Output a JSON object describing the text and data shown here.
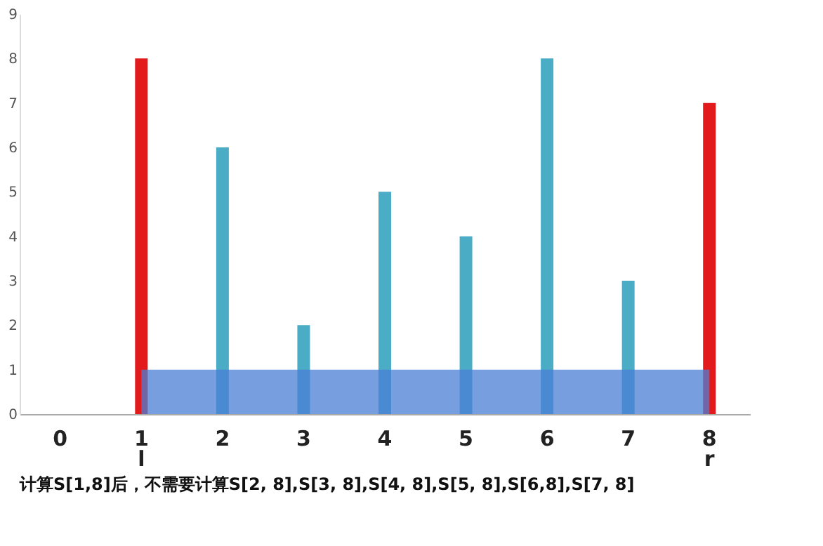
{
  "chart_data": {
    "type": "bar",
    "categories": [
      "0",
      "1",
      "2",
      "3",
      "4",
      "5",
      "6",
      "7",
      "8"
    ],
    "values": [
      0,
      8,
      6,
      2,
      5,
      4,
      8,
      3,
      7
    ],
    "colors": [
      "#4bacc6",
      "#e31a1c",
      "#4bacc6",
      "#4bacc6",
      "#4bacc6",
      "#4bacc6",
      "#4bacc6",
      "#4bacc6",
      "#e31a1c"
    ],
    "ylim": [
      0,
      9
    ],
    "yticks": [
      0,
      1,
      2,
      3,
      4,
      5,
      6,
      7,
      8,
      9
    ],
    "grid": false,
    "bands": [
      {
        "axis": "y",
        "from": 0,
        "to": 1,
        "color": "#4a7fd6"
      }
    ],
    "annotations": [
      "l",
      "r",
      "计算S[1,8]后，不需要计算S[2, 8],S[3, 8],S[4, 8],S[5, 8],S[6,8],S[7, 8]"
    ]
  }
}
